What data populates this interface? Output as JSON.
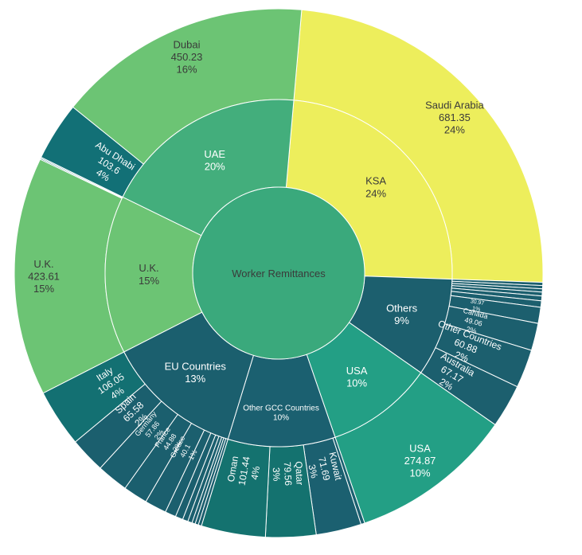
{
  "chart_data": {
    "type": "sunburst",
    "root": {
      "label": "Worker Remittances",
      "color": "#3aa97c"
    },
    "rings": [
      {
        "name": "KSA",
        "percent": "24%",
        "color": "#edee5c",
        "text": "#3a3a3a",
        "children": [
          {
            "label": "Saudi Arabia",
            "value": "681.35",
            "percent": "24%",
            "color": "#edee5c",
            "text": "#3a3a3a"
          }
        ]
      },
      {
        "name": "Others",
        "percent": "9%",
        "color": "#1c5f6e",
        "text": "#ffffff",
        "children": [
          {
            "label": "",
            "value": "",
            "percent": "",
            "color": "#1c5f6e",
            "weight": 1
          },
          {
            "label": "",
            "value": "",
            "percent": "",
            "color": "#1c5f6e",
            "weight": 1
          },
          {
            "label": "",
            "value": "",
            "percent": "",
            "color": "#1c5f6e",
            "weight": 1
          },
          {
            "label": "",
            "value": "",
            "percent": "",
            "color": "#1c5f6e",
            "weight": 1.2
          },
          {
            "label": "",
            "value": "",
            "percent": "",
            "color": "#1c5f6e",
            "weight": 1.5
          },
          {
            "label": "",
            "value": "",
            "percent": "",
            "color": "#1c5f6e",
            "weight": 2
          },
          {
            "label": "",
            "value": "30.97",
            "percent": "1%",
            "color": "#1c5f6e",
            "weight": 5
          },
          {
            "label": "Canada",
            "value": "49.06",
            "percent": "2%",
            "color": "#1c5f6e",
            "weight": 8.5
          },
          {
            "label": "Other Countries",
            "value": "60.88",
            "percent": "2%",
            "color": "#1c5f6e",
            "weight": 12
          },
          {
            "label": "Australia",
            "value": "67.17",
            "percent": "2%",
            "color": "#1c5f6e",
            "weight": 13.5
          }
        ]
      },
      {
        "name": "USA",
        "percent": "10%",
        "color": "#239f85",
        "text": "#ffffff",
        "children": [
          {
            "label": "USA",
            "value": "274.87",
            "percent": "10%",
            "color": "#239f85",
            "text": "#ffffff"
          }
        ]
      },
      {
        "name": "Other GCC Countries",
        "percent": "10%",
        "color": "#1b6070",
        "text": "#ffffff",
        "children": [
          {
            "label": "",
            "value": "",
            "percent": "",
            "color": "#1b6070",
            "weight": 6
          },
          {
            "label": "Kuwait",
            "value": "71.69",
            "percent": "3%",
            "color": "#1b6070",
            "weight": 71.69
          },
          {
            "label": "Qatar",
            "value": "79.56",
            "percent": "3%",
            "color": "#14726f",
            "weight": 79.56
          },
          {
            "label": "Oman",
            "value": "101.44",
            "percent": "4%",
            "color": "#14726f",
            "weight": 101.44
          }
        ]
      },
      {
        "name": "EU Countries",
        "percent": "13%",
        "color": "#1b5f6e",
        "text": "#ffffff",
        "children": [
          {
            "label": "",
            "value": "",
            "percent": "",
            "color": "#1b5f6e",
            "weight": 6
          },
          {
            "label": "",
            "value": "",
            "percent": "",
            "color": "#1b5f6e",
            "weight": 6
          },
          {
            "label": "",
            "value": "",
            "percent": "",
            "color": "#1b5f6e",
            "weight": 6
          },
          {
            "label": "",
            "value": "",
            "percent": "",
            "color": "#1b5f6e",
            "weight": 8
          },
          {
            "label": "",
            "value": "",
            "percent": "",
            "color": "#1b5f6e",
            "weight": 10
          },
          {
            "label": "",
            "value": "",
            "percent": "",
            "color": "#1b5f6e",
            "weight": 14
          },
          {
            "label": "",
            "value": "",
            "percent": "",
            "color": "#1b5f6e",
            "weight": 20
          },
          {
            "label": "Greece",
            "value": "40.1",
            "percent": "1%",
            "color": "#1b5f6e",
            "weight": 40.1
          },
          {
            "label": "France",
            "value": "44.88",
            "percent": "2%",
            "color": "#1b5f6e",
            "weight": 44.88
          },
          {
            "label": "Germany",
            "value": "57.86",
            "percent": "2%",
            "color": "#1b5f6e",
            "weight": 57.86
          },
          {
            "label": "Spain",
            "value": "65.58",
            "percent": "2%",
            "color": "#1b5f6e",
            "weight": 65.58
          },
          {
            "label": "Italy",
            "value": "106.05",
            "percent": "4%",
            "color": "#137072",
            "weight": 106.05
          }
        ]
      },
      {
        "name": "U.K.",
        "percent": "15%",
        "color": "#6cc474",
        "text": "#3a3a3a",
        "children": [
          {
            "label": "U.K.",
            "value": "423.61",
            "percent": "15%",
            "color": "#6cc474",
            "text": "#3a3a3a",
            "weight": 423.61
          },
          {
            "label": "",
            "value": "",
            "percent": "",
            "color": "#0f6f72",
            "weight": 2
          },
          {
            "label": "",
            "value": "",
            "percent": "",
            "color": "#0f6f72",
            "weight": 2
          }
        ]
      },
      {
        "name": "UAE",
        "percent": "20%",
        "color": "#43ae7c",
        "text": "#ffffff",
        "children": [
          {
            "label": "Abu Dhabi",
            "value": "103.6",
            "percent": "4%",
            "color": "#127076",
            "text": "#ffffff",
            "weight": 103.6
          },
          {
            "label": "Dubai",
            "value": "450.23",
            "percent": "16%",
            "color": "#6cc474",
            "text": "#3a3a3a",
            "weight": 450.23
          }
        ]
      }
    ]
  }
}
